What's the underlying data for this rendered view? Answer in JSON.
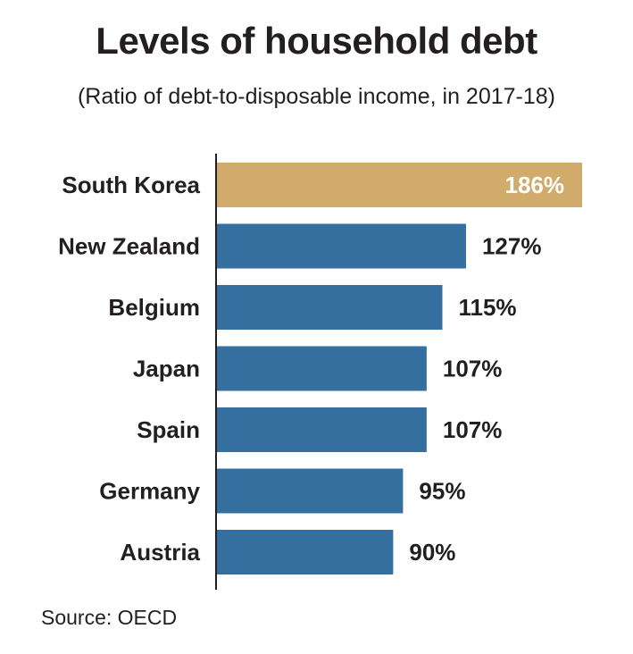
{
  "chart_data": {
    "type": "bar",
    "orientation": "horizontal",
    "title": "Levels of household debt",
    "subtitle": "(Ratio of debt-to-disposable income, in 2017-18)",
    "categories": [
      "South Korea",
      "New Zealand",
      "Belgium",
      "Japan",
      "Spain",
      "Germany",
      "Austria"
    ],
    "values": [
      186,
      127,
      115,
      107,
      107,
      95,
      90
    ],
    "value_labels": [
      "186%",
      "127%",
      "115%",
      "107%",
      "107%",
      "95%",
      "90%"
    ],
    "unit": "%",
    "xlim": [
      0,
      186
    ],
    "grid": false,
    "legend": "none",
    "colors": {
      "highlight": "#d1ab6c",
      "default": "#346f9f",
      "axis": "#231f20",
      "label_on_bar": "#ffffff",
      "label_outside": "#231f20"
    },
    "highlight_index": 0,
    "source": "Source: OECD"
  }
}
